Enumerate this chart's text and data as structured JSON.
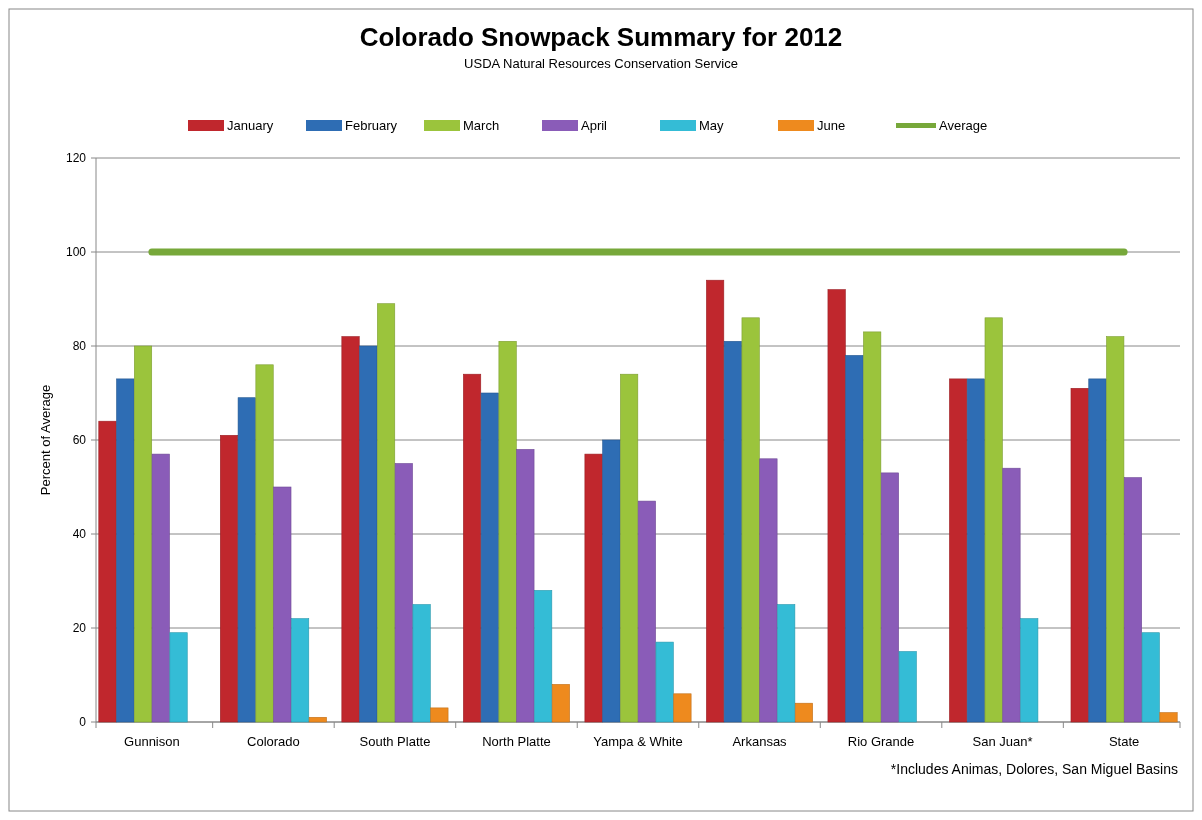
{
  "chart_data": {
    "type": "bar",
    "title": "Colorado Snowpack Summary for 2012",
    "subtitle": "USDA Natural Resources Conservation Service",
    "ylabel": "Percent of Average",
    "categories": [
      "Gunnison",
      "Colorado",
      "South Platte",
      "North Platte",
      "Yampa & White",
      "Arkansas",
      "Rio Grande",
      "San Juan*",
      "State"
    ],
    "series": [
      {
        "name": "January",
        "color": "#c0272d",
        "values": [
          64,
          61,
          82,
          74,
          57,
          94,
          92,
          73,
          71
        ]
      },
      {
        "name": "February",
        "color": "#2e6db4",
        "values": [
          73,
          69,
          80,
          70,
          60,
          81,
          78,
          73,
          73
        ]
      },
      {
        "name": "March",
        "color": "#9bc43c",
        "values": [
          80,
          76,
          89,
          81,
          74,
          86,
          83,
          86,
          82
        ]
      },
      {
        "name": "April",
        "color": "#8a5cb8",
        "values": [
          57,
          50,
          55,
          58,
          47,
          56,
          53,
          54,
          52
        ]
      },
      {
        "name": "May",
        "color": "#34bcd6",
        "values": [
          19,
          22,
          25,
          28,
          17,
          25,
          15,
          22,
          19
        ]
      },
      {
        "name": "June",
        "color": "#ee8a1e",
        "values": [
          0,
          1,
          3,
          8,
          6,
          4,
          0,
          0,
          2
        ]
      },
      {
        "name": "Average",
        "type": "line",
        "color": "#77a83a",
        "values": [
          100,
          100,
          100,
          100,
          100,
          100,
          100,
          100,
          100
        ]
      }
    ],
    "ylim": [
      0,
      120
    ],
    "yticks": [
      0,
      20,
      40,
      60,
      80,
      100,
      120
    ],
    "grid": "y",
    "legend": "top",
    "annotations": [
      "*Includes Animas, Dolores, San Miguel Basins"
    ]
  }
}
